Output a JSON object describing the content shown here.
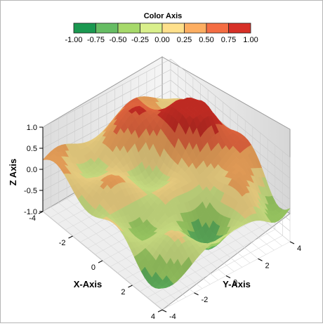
{
  "chart_data": {
    "type": "surface3d",
    "colorbar": {
      "title": "Color Axis",
      "ticks": [
        "-1.00",
        "-0.75",
        "-0.50",
        "-0.25",
        "0.00",
        "0.25",
        "0.50",
        "0.75",
        "1.00"
      ],
      "colors": [
        "#1a9850",
        "#66bd63",
        "#a6d96a",
        "#d9ef8b",
        "#fee08b",
        "#fdae61",
        "#f46d43",
        "#d73027"
      ]
    },
    "x_axis": {
      "title": "X-Axis",
      "ticks": [
        "-4",
        "-2",
        "0",
        "2",
        "4"
      ],
      "range": [
        -4,
        4
      ]
    },
    "y_axis": {
      "title": "Y-Axis",
      "ticks": [
        "-4",
        "-2",
        "0",
        "2",
        "4"
      ],
      "range": [
        -4,
        4
      ]
    },
    "z_axis": {
      "title": "Z Axis",
      "ticks": [
        "1.0",
        "0.5",
        "0.0",
        "-0.5",
        "-1.0"
      ],
      "range": [
        -1,
        1
      ]
    },
    "grid": true,
    "z_function": "1.5*f(x,y) - 0.5 where f is a smooth multi-peak surface; z mapped to color bands"
  }
}
